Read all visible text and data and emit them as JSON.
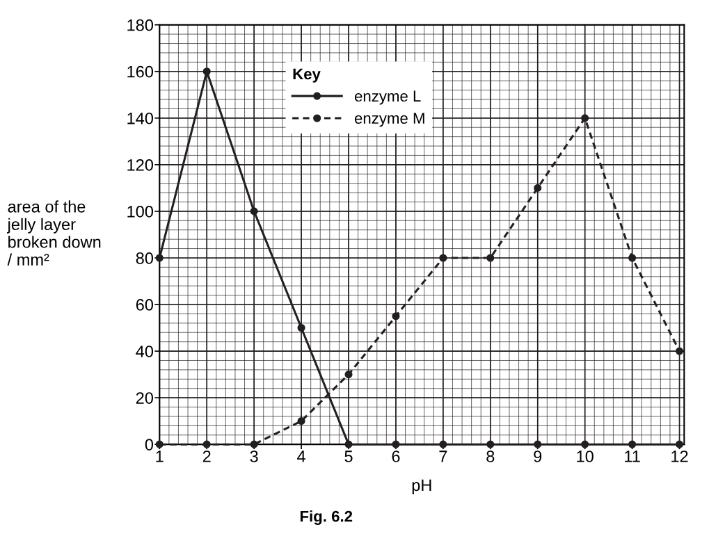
{
  "chart_data": {
    "type": "line",
    "xlabel": "pH",
    "ylabel": "area of the\njelly layer\nbroken down\n/ mm²",
    "legend_title": "Key",
    "x": [
      1,
      2,
      3,
      4,
      5,
      6,
      7,
      8,
      9,
      10,
      11,
      12
    ],
    "series": [
      {
        "name": "enzyme L",
        "color": "#231f20",
        "line_style": "solid",
        "values": [
          80,
          160,
          100,
          50,
          0,
          0,
          0,
          0,
          0,
          0,
          0,
          0
        ]
      },
      {
        "name": "enzyme M",
        "color": "#231f20",
        "line_style": "dashed",
        "values": [
          0,
          0,
          0,
          10,
          30,
          55,
          80,
          80,
          110,
          140,
          80,
          40
        ]
      }
    ],
    "xlim": [
      1,
      12.1
    ],
    "ylim": [
      0,
      180
    ],
    "xticks": [
      1,
      2,
      3,
      4,
      5,
      6,
      7,
      8,
      9,
      10,
      11,
      12
    ],
    "yticks": [
      0,
      20,
      40,
      60,
      80,
      100,
      120,
      140,
      160,
      180
    ],
    "grid": true,
    "legend": "top",
    "marker": "circle",
    "annotations": [
      "Fig. 6.2"
    ]
  }
}
